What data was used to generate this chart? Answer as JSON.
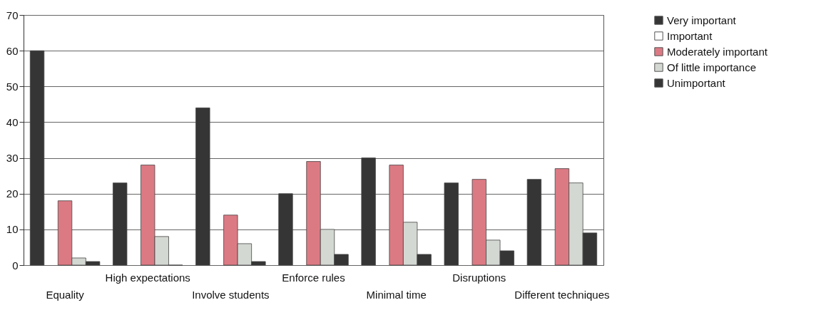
{
  "chart_data": {
    "type": "bar",
    "categories": [
      "Equality",
      "High expectations",
      "Involve students",
      "Enforce rules",
      "Minimal time",
      "Disruptions",
      "Different techniques"
    ],
    "series": [
      {
        "name": "Very important",
        "color": "#353535",
        "values": [
          60,
          23,
          44,
          20,
          30,
          23,
          24
        ]
      },
      {
        "name": "Important",
        "color": "#ffffff",
        "values": [
          null,
          null,
          null,
          null,
          null,
          null,
          null
        ]
      },
      {
        "name": "Moderately important",
        "color": "#dc7a84",
        "values": [
          18,
          28,
          14,
          29,
          28,
          24,
          27
        ]
      },
      {
        "name": "Of little importance",
        "color": "#d4d8d2",
        "values": [
          2,
          8,
          6,
          10,
          12,
          7,
          23
        ]
      },
      {
        "name": "Unimportant",
        "color": "#353535",
        "values": [
          1,
          0,
          1,
          3,
          3,
          4,
          9
        ]
      }
    ],
    "ylim": [
      0,
      70
    ],
    "yticks": [
      0,
      10,
      20,
      30,
      40,
      50,
      60,
      70
    ],
    "grid": true,
    "legend": "right"
  }
}
